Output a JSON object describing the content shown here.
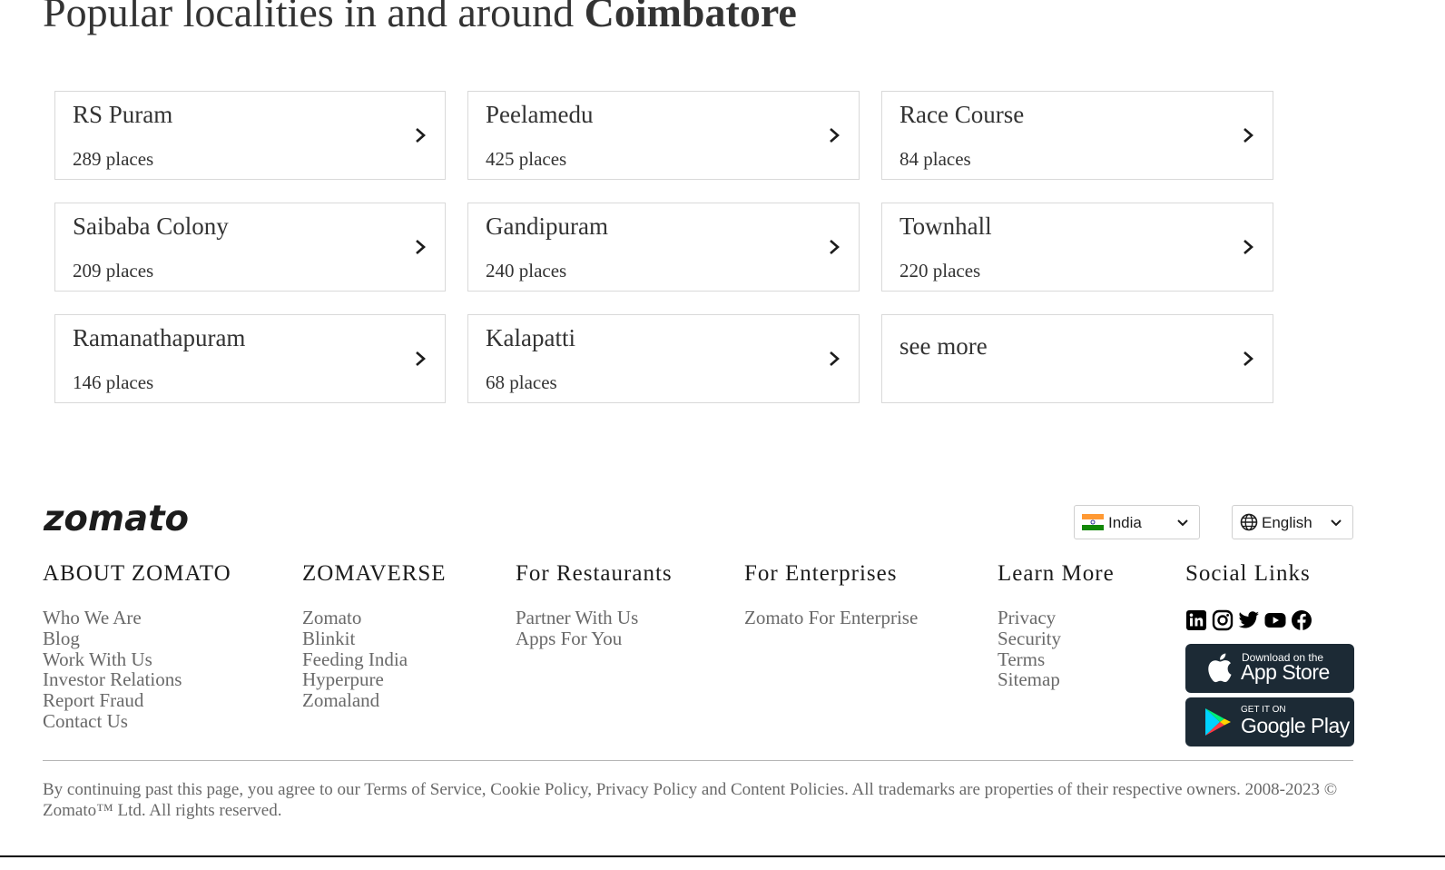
{
  "heading": {
    "prefix": "Popular localities in and around",
    "city": "Coimbatore"
  },
  "localities": [
    {
      "name": "RS Puram",
      "count": "289 places"
    },
    {
      "name": "Peelamedu",
      "count": "425 places"
    },
    {
      "name": "Race Course",
      "count": "84 places"
    },
    {
      "name": "Saibaba Colony",
      "count": "209 places"
    },
    {
      "name": "Gandipuram",
      "count": "240 places"
    },
    {
      "name": "Townhall",
      "count": "220 places"
    },
    {
      "name": "Ramanathapuram",
      "count": "146 places"
    },
    {
      "name": "Kalapatti",
      "count": "68 places"
    }
  ],
  "see_more_label": "see more",
  "footer": {
    "logo_text": "zomato",
    "country": "India",
    "language": "English",
    "columns": [
      {
        "heading": "ABOUT ZOMATO",
        "links": [
          "Who We Are",
          "Blog",
          "Work With Us",
          "Investor Relations",
          "Report Fraud",
          "Contact Us"
        ]
      },
      {
        "heading": "ZOMAVERSE",
        "links": [
          "Zomato",
          "Blinkit",
          "Feeding India",
          "Hyperpure",
          "Zomaland"
        ]
      },
      {
        "heading": "For Restaurants",
        "links": [
          "Partner With Us",
          "Apps For You"
        ]
      },
      {
        "heading": "For Enterprises",
        "links": [
          "Zomato For Enterprise"
        ]
      },
      {
        "heading": "Learn More",
        "links": [
          "Privacy",
          "Security",
          "Terms",
          "Sitemap"
        ]
      }
    ],
    "social": {
      "heading": "Social Links",
      "icons": [
        "linkedin-icon",
        "instagram-icon",
        "twitter-icon",
        "youtube-icon",
        "facebook-icon"
      ],
      "app_store": {
        "small": "Download on the",
        "big": "App Store"
      },
      "google_play": {
        "small": "GET IT ON",
        "big": "Google Play"
      }
    },
    "legal": "By continuing past this page, you agree to our Terms of Service, Cookie Policy, Privacy Policy and Content Policies. All trademarks are properties of their respective owners. 2008-2023 © Zomato™ Ltd. All rights reserved."
  },
  "colors": {
    "text": "#333333",
    "link": "#696969",
    "border": "#d9d9d9",
    "badge_bg": "#1c2a35"
  }
}
